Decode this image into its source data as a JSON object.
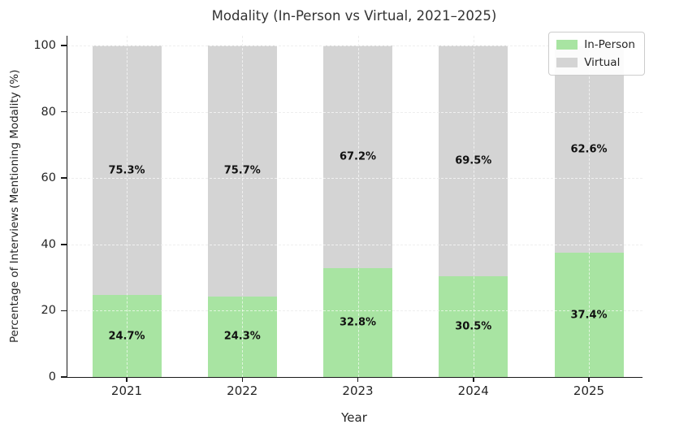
{
  "chart_data": {
    "type": "bar",
    "stacked": true,
    "title": "Modality (In-Person vs Virtual, 2021–2025)",
    "xlabel": "Year",
    "ylabel": "Percentage of Interviews Mentioning Modality (%)",
    "categories": [
      "2021",
      "2022",
      "2023",
      "2024",
      "2025"
    ],
    "series": [
      {
        "name": "In-Person",
        "color": "#a8e4a2",
        "values": [
          24.7,
          24.3,
          32.8,
          30.5,
          37.4
        ]
      },
      {
        "name": "Virtual",
        "color": "#d4d4d4",
        "values": [
          75.3,
          75.7,
          67.2,
          69.5,
          62.6
        ]
      }
    ],
    "value_label_suffix": "%",
    "ylim": [
      0,
      103
    ],
    "yticks": [
      0,
      20,
      40,
      60,
      80,
      100
    ],
    "grid": true,
    "grid_style": "dashed",
    "legend": {
      "position": "upper right"
    },
    "colors": {
      "spine": "#1a1a1a",
      "grid": "#cfcfcf",
      "tick_text": "#262626",
      "title_text": "#333333",
      "value_label_text": "#111111",
      "legend_border": "#cccccc",
      "background": "#ffffff"
    }
  }
}
